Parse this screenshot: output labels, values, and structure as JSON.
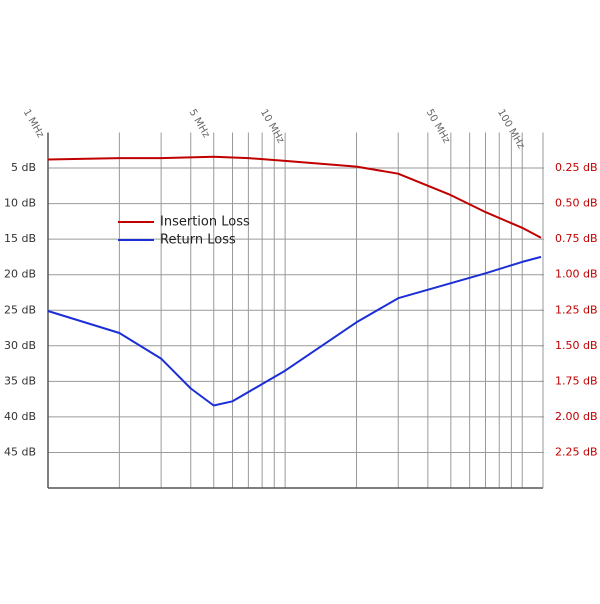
{
  "chart_data": {
    "type": "line",
    "xscale": "log",
    "xlim": [
      1,
      120
    ],
    "xticks": [
      {
        "value": 1,
        "label": "1 MHz"
      },
      {
        "value": 5,
        "label": "5 MHz"
      },
      {
        "value": 10,
        "label": "10 MHz"
      },
      {
        "value": 50,
        "label": "50 MHz"
      },
      {
        "value": 100,
        "label": "100 MHz"
      }
    ],
    "xminor_ticks": [
      2,
      3,
      4,
      6,
      7,
      8,
      9,
      20,
      30,
      40,
      60,
      70,
      80,
      90
    ],
    "ylim": [
      50,
      0
    ],
    "yticks": [
      {
        "value": 5,
        "label": "5 dB"
      },
      {
        "value": 10,
        "label": "10 dB"
      },
      {
        "value": 15,
        "label": "15 dB"
      },
      {
        "value": 20,
        "label": "20 dB"
      },
      {
        "value": 25,
        "label": "25 dB"
      },
      {
        "value": 30,
        "label": "30 dB"
      },
      {
        "value": 35,
        "label": "35 dB"
      },
      {
        "value": 40,
        "label": "40 dB"
      },
      {
        "value": 45,
        "label": "45 dB"
      }
    ],
    "y2lim": [
      2.5,
      0
    ],
    "y2ticks": [
      {
        "value": 0.25,
        "label": "0.25 dB"
      },
      {
        "value": 0.5,
        "label": "0.50 dB"
      },
      {
        "value": 0.75,
        "label": "0.75 dB"
      },
      {
        "value": 1.0,
        "label": "1.00 dB"
      },
      {
        "value": 1.25,
        "label": "1.25 dB"
      },
      {
        "value": 1.5,
        "label": "1.50 dB"
      },
      {
        "value": 1.75,
        "label": "1.75 dB"
      },
      {
        "value": 2.0,
        "label": "2.00 dB"
      },
      {
        "value": 2.25,
        "label": "2.25 dB"
      }
    ],
    "grid": true,
    "legend": "upper-left",
    "y2_color": "#c00000",
    "series": [
      {
        "name": "Insertion Loss",
        "color": "#c00000",
        "axis": "y2",
        "x": [
          1,
          2,
          3,
          5,
          7,
          10,
          20,
          30,
          50,
          70,
          100,
          120
        ],
        "values": [
          0.19,
          0.18,
          0.18,
          0.17,
          0.18,
          0.2,
          0.24,
          0.29,
          0.44,
          0.56,
          0.67,
          0.74
        ]
      },
      {
        "name": "Return Loss",
        "color": "#1c2fd6",
        "x": [
          1,
          2,
          3,
          4,
          5,
          6,
          10,
          20,
          30,
          50,
          70,
          100,
          120
        ],
        "values": [
          25.1,
          28.2,
          31.8,
          36.0,
          38.4,
          37.8,
          33.5,
          26.7,
          23.3,
          21.2,
          19.8,
          18.2,
          17.5
        ]
      }
    ]
  }
}
